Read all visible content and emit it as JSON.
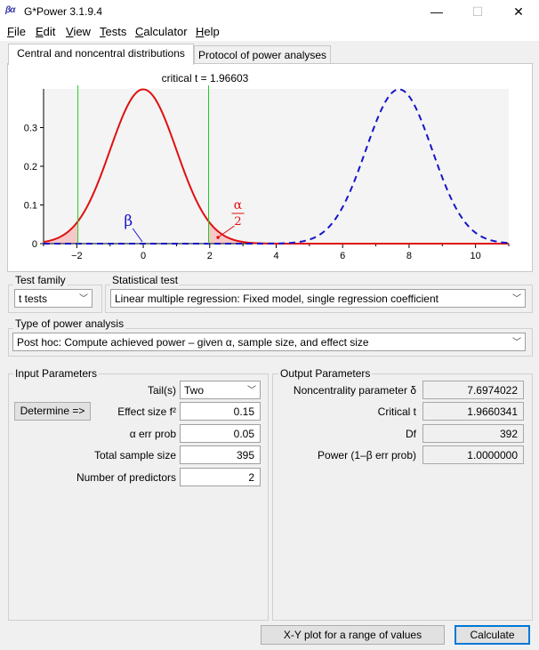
{
  "window": {
    "title": "G*Power 3.1.9.4",
    "icon_text": "βα",
    "controls": {
      "minimize": "—",
      "maximize": "☐",
      "close": "✕"
    }
  },
  "menu": [
    {
      "label": "File",
      "accel": "F",
      "rest": "ile"
    },
    {
      "label": "Edit",
      "accel": "E",
      "rest": "dit"
    },
    {
      "label": "View",
      "accel": "V",
      "rest": "iew"
    },
    {
      "label": "Tests",
      "accel": "T",
      "rest": "ests"
    },
    {
      "label": "Calculator",
      "accel": "C",
      "rest": "alculator"
    },
    {
      "label": "Help",
      "accel": "H",
      "rest": "elp"
    }
  ],
  "tabs": [
    {
      "label": "Central and noncentral distributions",
      "active": true
    },
    {
      "label": "Protocol of power analyses",
      "active": false
    }
  ],
  "chart_data": {
    "type": "line",
    "title": "critical t = 1.96603",
    "critical_t": 1.96603,
    "xlim": [
      -3,
      11
    ],
    "ylim": [
      0,
      0.4
    ],
    "x_ticks": [
      -2,
      0,
      2,
      4,
      6,
      8,
      10
    ],
    "y_ticks": [
      0,
      0.1,
      0.2,
      0.3
    ],
    "y_tick_labels": [
      "0",
      "0.1",
      "0.2",
      "0.3"
    ],
    "series": [
      {
        "distribution": "central t",
        "df": 392,
        "mean": 0,
        "style": "solid",
        "color": "#e01010"
      },
      {
        "distribution": "noncentral t",
        "df": 392,
        "noncentrality": 7.6974022,
        "style": "dashed",
        "color": "#1515c8"
      }
    ],
    "critical_lines": [
      -1.96603,
      1.96603
    ],
    "critical_line_color": "#22cc22",
    "annotations": {
      "beta": "β",
      "alpha_num": "α",
      "alpha_den": "2"
    }
  },
  "test_family": {
    "label": "Test family",
    "value": "t tests"
  },
  "statistical_test": {
    "label": "Statistical test",
    "value": "Linear multiple regression: Fixed model, single regression coefficient"
  },
  "power_analysis": {
    "label": "Type of power analysis",
    "value": "Post hoc: Compute achieved power – given α, sample size, and effect size"
  },
  "input": {
    "label": "Input Parameters",
    "determine_label": "Determine =>",
    "tails_label": "Tail(s)",
    "tails_value": "Two",
    "effect_label": "Effect size f²",
    "effect_value": "0.15",
    "alpha_label": "α err prob",
    "alpha_value": "0.05",
    "n_label": "Total sample size",
    "n_value": "395",
    "pred_label": "Number of predictors",
    "pred_value": "2"
  },
  "output": {
    "label": "Output Parameters",
    "nc_label": "Noncentrality parameter δ",
    "nc_value": "7.6974022",
    "crit_label": "Critical t",
    "crit_value": "1.9660341",
    "df_label": "Df",
    "df_value": "392",
    "power_label": "Power (1–β err prob)",
    "power_value": "1.0000000"
  },
  "buttons": {
    "xy_plot": "X-Y plot for a range of values",
    "calculate": "Calculate"
  }
}
